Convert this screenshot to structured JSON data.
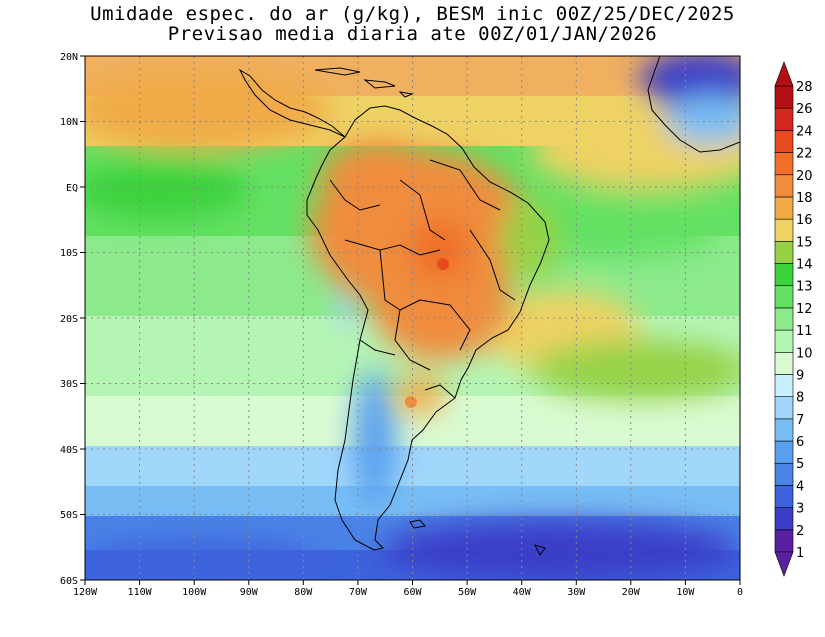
{
  "title": {
    "line1": "Umidade espec. do ar (g/kg), BESM inic 00Z/25/DEC/2025",
    "line2": "Previsao media diaria ate 00Z/01/JAN/2026"
  },
  "map": {
    "lat_labels": [
      "20N",
      "10N",
      "EQ",
      "10S",
      "20S",
      "30S",
      "40S",
      "50S",
      "60S"
    ],
    "lon_labels": [
      "120W",
      "110W",
      "100W",
      "90W",
      "80W",
      "70W",
      "60W",
      "50W",
      "40W",
      "30W",
      "20W",
      "10W",
      "0"
    ],
    "lat_range": [
      -60,
      20
    ],
    "lon_range": [
      -120,
      0
    ],
    "grid": true
  },
  "colorbar": {
    "levels": [
      1,
      2,
      3,
      4,
      5,
      6,
      7,
      8,
      9,
      10,
      11,
      12,
      13,
      14,
      15,
      16,
      18,
      20,
      22,
      24,
      26,
      28
    ],
    "labels": [
      "28",
      "26",
      "24",
      "22",
      "20",
      "18",
      "16",
      "15",
      "14",
      "13",
      "12",
      "11",
      "10",
      "9",
      "8",
      "7",
      "6",
      "5",
      "4",
      "3",
      "2",
      "1"
    ],
    "colors": [
      "#5a1ea0",
      "#3b3cc8",
      "#3c64dc",
      "#4a82e6",
      "#5aa0f0",
      "#78bef5",
      "#a0d7fa",
      "#c8f0ff",
      "#d9fbd2",
      "#b4f5b4",
      "#8cea8c",
      "#64e164",
      "#3cd23c",
      "#96d246",
      "#eed264",
      "#f0aa46",
      "#f08c3c",
      "#f06e28",
      "#e64b1e",
      "#d2281e",
      "#b40f14"
    ]
  }
}
